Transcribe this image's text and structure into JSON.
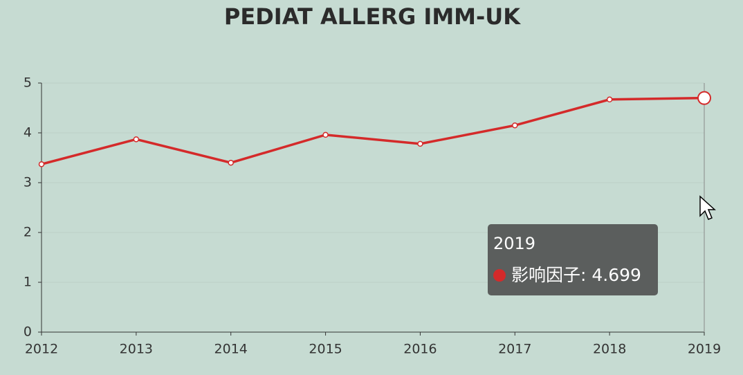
{
  "chart_data": {
    "type": "line",
    "title": "PEDIAT ALLERG IMM-UK",
    "categories": [
      "2012",
      "2013",
      "2014",
      "2015",
      "2016",
      "2017",
      "2018",
      "2019"
    ],
    "series": [
      {
        "name": "影响因子",
        "color": "#d42a2a",
        "values": [
          3.37,
          3.87,
          3.4,
          3.96,
          3.78,
          4.15,
          4.67,
          4.699
        ]
      }
    ],
    "ylim": [
      0,
      5
    ],
    "yticks": [
      0,
      1,
      2,
      3,
      4,
      5
    ],
    "grid": true
  }
}
